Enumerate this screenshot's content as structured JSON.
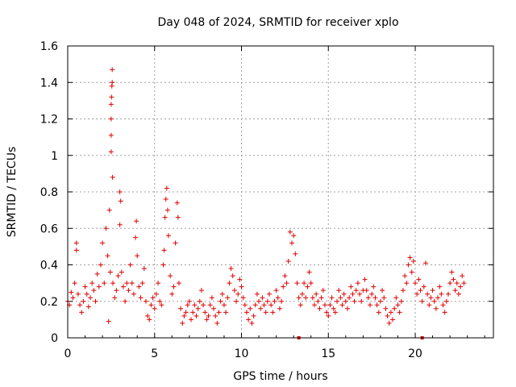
{
  "colors": {
    "series": "#e00000",
    "grid": "#a0a0a0",
    "axis": "#000000",
    "background": "#ffffff"
  },
  "chart_data": {
    "type": "scatter",
    "title": "Day 048 of 2024, SRMTID for receiver xplo",
    "xlabel": "GPS time / hours",
    "ylabel": "SRMTID / TECUs",
    "xlim": [
      0,
      24.5
    ],
    "ylim": [
      0,
      1.6
    ],
    "xticks": [
      0,
      5,
      10,
      15,
      20
    ],
    "xtick_labels": [
      "0",
      "5",
      "10",
      "15",
      "20"
    ],
    "yticks": [
      0,
      0.2,
      0.4,
      0.6,
      0.8,
      1.0,
      1.2,
      1.4,
      1.6
    ],
    "ytick_labels": [
      "0",
      "0.2",
      "0.4",
      "0.6",
      "0.8",
      "1",
      "1.2",
      "1.4",
      "1.6"
    ],
    "grid": true,
    "marker": "plus",
    "series": [
      {
        "name": "SRMTID",
        "points": [
          [
            0.0,
            0.2
          ],
          [
            0.1,
            0.18
          ],
          [
            0.2,
            0.25
          ],
          [
            0.3,
            0.22
          ],
          [
            0.4,
            0.3
          ],
          [
            0.5,
            0.52
          ],
          [
            0.5,
            0.48
          ],
          [
            0.6,
            0.24
          ],
          [
            0.7,
            0.18
          ],
          [
            0.8,
            0.14
          ],
          [
            0.9,
            0.2
          ],
          [
            1.0,
            0.28
          ],
          [
            1.1,
            0.24
          ],
          [
            1.2,
            0.17
          ],
          [
            1.3,
            0.22
          ],
          [
            1.4,
            0.3
          ],
          [
            1.5,
            0.26
          ],
          [
            1.6,
            0.2
          ],
          [
            1.7,
            0.35
          ],
          [
            1.8,
            0.28
          ],
          [
            1.9,
            0.4
          ],
          [
            2.0,
            0.52
          ],
          [
            2.1,
            0.3
          ],
          [
            2.2,
            0.6
          ],
          [
            2.3,
            0.45
          ],
          [
            2.35,
            0.09
          ],
          [
            2.4,
            0.7
          ],
          [
            2.45,
            0.36
          ],
          [
            2.5,
            1.02
          ],
          [
            2.5,
            1.11
          ],
          [
            2.5,
            1.2
          ],
          [
            2.5,
            1.28
          ],
          [
            2.52,
            1.32
          ],
          [
            2.54,
            1.38
          ],
          [
            2.56,
            1.4
          ],
          [
            2.56,
            1.47
          ],
          [
            2.58,
            0.88
          ],
          [
            2.6,
            0.3
          ],
          [
            2.7,
            0.22
          ],
          [
            2.8,
            0.26
          ],
          [
            2.9,
            0.34
          ],
          [
            3.0,
            0.62
          ],
          [
            3.0,
            0.8
          ],
          [
            3.05,
            0.75
          ],
          [
            3.1,
            0.36
          ],
          [
            3.2,
            0.28
          ],
          [
            3.3,
            0.2
          ],
          [
            3.4,
            0.3
          ],
          [
            3.5,
            0.26
          ],
          [
            3.6,
            0.4
          ],
          [
            3.7,
            0.3
          ],
          [
            3.8,
            0.24
          ],
          [
            3.9,
            0.55
          ],
          [
            3.95,
            0.64
          ],
          [
            4.0,
            0.45
          ],
          [
            4.1,
            0.28
          ],
          [
            4.2,
            0.22
          ],
          [
            4.3,
            0.3
          ],
          [
            4.4,
            0.38
          ],
          [
            4.5,
            0.2
          ],
          [
            4.6,
            0.12
          ],
          [
            4.7,
            0.1
          ],
          [
            4.8,
            0.18
          ],
          [
            4.9,
            0.22
          ],
          [
            5.0,
            0.16
          ],
          [
            5.1,
            0.24
          ],
          [
            5.2,
            0.3
          ],
          [
            5.3,
            0.2
          ],
          [
            5.4,
            0.18
          ],
          [
            5.5,
            0.4
          ],
          [
            5.55,
            0.48
          ],
          [
            5.6,
            0.66
          ],
          [
            5.65,
            0.76
          ],
          [
            5.7,
            0.82
          ],
          [
            5.75,
            0.7
          ],
          [
            5.8,
            0.56
          ],
          [
            5.9,
            0.34
          ],
          [
            6.0,
            0.24
          ],
          [
            6.1,
            0.28
          ],
          [
            6.2,
            0.52
          ],
          [
            6.3,
            0.74
          ],
          [
            6.35,
            0.66
          ],
          [
            6.4,
            0.3
          ],
          [
            6.5,
            0.16
          ],
          [
            6.6,
            0.08
          ],
          [
            6.7,
            0.12
          ],
          [
            6.8,
            0.14
          ],
          [
            6.9,
            0.18
          ],
          [
            7.0,
            0.2
          ],
          [
            7.1,
            0.1
          ],
          [
            7.2,
            0.14
          ],
          [
            7.3,
            0.18
          ],
          [
            7.4,
            0.12
          ],
          [
            7.5,
            0.16
          ],
          [
            7.6,
            0.2
          ],
          [
            7.7,
            0.26
          ],
          [
            7.8,
            0.18
          ],
          [
            7.9,
            0.14
          ],
          [
            8.0,
            0.1
          ],
          [
            8.1,
            0.12
          ],
          [
            8.2,
            0.18
          ],
          [
            8.3,
            0.22
          ],
          [
            8.4,
            0.16
          ],
          [
            8.5,
            0.12
          ],
          [
            8.6,
            0.08
          ],
          [
            8.7,
            0.14
          ],
          [
            8.8,
            0.2
          ],
          [
            8.9,
            0.24
          ],
          [
            9.0,
            0.18
          ],
          [
            9.1,
            0.14
          ],
          [
            9.2,
            0.22
          ],
          [
            9.3,
            0.3
          ],
          [
            9.4,
            0.38
          ],
          [
            9.5,
            0.34
          ],
          [
            9.6,
            0.26
          ],
          [
            9.7,
            0.2
          ],
          [
            9.8,
            0.24
          ],
          [
            9.9,
            0.32
          ],
          [
            10.0,
            0.28
          ],
          [
            10.1,
            0.22
          ],
          [
            10.2,
            0.18
          ],
          [
            10.3,
            0.14
          ],
          [
            10.4,
            0.1
          ],
          [
            10.5,
            0.16
          ],
          [
            10.6,
            0.08
          ],
          [
            10.7,
            0.12
          ],
          [
            10.8,
            0.18
          ],
          [
            10.9,
            0.24
          ],
          [
            11.0,
            0.2
          ],
          [
            11.1,
            0.16
          ],
          [
            11.2,
            0.22
          ],
          [
            11.3,
            0.18
          ],
          [
            11.4,
            0.14
          ],
          [
            11.5,
            0.2
          ],
          [
            11.6,
            0.24
          ],
          [
            11.7,
            0.18
          ],
          [
            11.8,
            0.14
          ],
          [
            11.9,
            0.2
          ],
          [
            12.0,
            0.26
          ],
          [
            12.1,
            0.22
          ],
          [
            12.2,
            0.16
          ],
          [
            12.3,
            0.2
          ],
          [
            12.4,
            0.28
          ],
          [
            12.5,
            0.34
          ],
          [
            12.6,
            0.3
          ],
          [
            12.7,
            0.42
          ],
          [
            12.8,
            0.58
          ],
          [
            12.9,
            0.52
          ],
          [
            13.0,
            0.56
          ],
          [
            13.1,
            0.46
          ],
          [
            13.2,
            0.3
          ],
          [
            13.3,
            0.22
          ],
          [
            13.4,
            0.18
          ],
          [
            13.5,
            0.24
          ],
          [
            13.6,
            0.3
          ],
          [
            13.7,
            0.22
          ],
          [
            13.8,
            0.28
          ],
          [
            13.9,
            0.36
          ],
          [
            14.0,
            0.3
          ],
          [
            14.1,
            0.22
          ],
          [
            14.2,
            0.18
          ],
          [
            14.3,
            0.24
          ],
          [
            14.4,
            0.2
          ],
          [
            14.5,
            0.16
          ],
          [
            14.6,
            0.22
          ],
          [
            14.7,
            0.26
          ],
          [
            14.8,
            0.18
          ],
          [
            14.9,
            0.14
          ],
          [
            15.0,
            0.12
          ],
          [
            15.1,
            0.18
          ],
          [
            15.2,
            0.22
          ],
          [
            15.3,
            0.16
          ],
          [
            15.4,
            0.14
          ],
          [
            15.5,
            0.2
          ],
          [
            15.6,
            0.26
          ],
          [
            15.7,
            0.22
          ],
          [
            15.8,
            0.18
          ],
          [
            15.9,
            0.24
          ],
          [
            16.0,
            0.2
          ],
          [
            16.1,
            0.16
          ],
          [
            16.2,
            0.22
          ],
          [
            16.3,
            0.28
          ],
          [
            16.4,
            0.24
          ],
          [
            16.5,
            0.2
          ],
          [
            16.6,
            0.26
          ],
          [
            16.7,
            0.3
          ],
          [
            16.8,
            0.24
          ],
          [
            16.9,
            0.2
          ],
          [
            17.0,
            0.26
          ],
          [
            17.1,
            0.32
          ],
          [
            17.2,
            0.26
          ],
          [
            17.3,
            0.22
          ],
          [
            17.4,
            0.18
          ],
          [
            17.5,
            0.24
          ],
          [
            17.6,
            0.28
          ],
          [
            17.7,
            0.22
          ],
          [
            17.8,
            0.18
          ],
          [
            17.9,
            0.14
          ],
          [
            18.0,
            0.2
          ],
          [
            18.1,
            0.26
          ],
          [
            18.2,
            0.22
          ],
          [
            18.3,
            0.16
          ],
          [
            18.4,
            0.12
          ],
          [
            18.5,
            0.08
          ],
          [
            18.6,
            0.14
          ],
          [
            18.7,
            0.1
          ],
          [
            18.8,
            0.16
          ],
          [
            18.9,
            0.22
          ],
          [
            19.0,
            0.18
          ],
          [
            19.1,
            0.14
          ],
          [
            19.2,
            0.2
          ],
          [
            19.3,
            0.26
          ],
          [
            19.4,
            0.34
          ],
          [
            19.5,
            0.3
          ],
          [
            19.6,
            0.4
          ],
          [
            19.7,
            0.44
          ],
          [
            19.8,
            0.36
          ],
          [
            19.9,
            0.42
          ],
          [
            20.0,
            0.3
          ],
          [
            20.1,
            0.24
          ],
          [
            20.2,
            0.32
          ],
          [
            20.3,
            0.26
          ],
          [
            20.4,
            0.2
          ],
          [
            20.5,
            0.28
          ],
          [
            20.6,
            0.41
          ],
          [
            20.7,
            0.24
          ],
          [
            20.8,
            0.18
          ],
          [
            20.9,
            0.22
          ],
          [
            21.0,
            0.26
          ],
          [
            21.1,
            0.2
          ],
          [
            21.2,
            0.16
          ],
          [
            21.3,
            0.22
          ],
          [
            21.4,
            0.28
          ],
          [
            21.5,
            0.24
          ],
          [
            21.6,
            0.18
          ],
          [
            21.7,
            0.14
          ],
          [
            21.8,
            0.2
          ],
          [
            21.9,
            0.24
          ],
          [
            22.0,
            0.3
          ],
          [
            22.1,
            0.36
          ],
          [
            22.2,
            0.32
          ],
          [
            22.3,
            0.26
          ],
          [
            22.4,
            0.3
          ],
          [
            22.5,
            0.24
          ],
          [
            22.6,
            0.28
          ],
          [
            22.7,
            0.34
          ],
          [
            22.8,
            0.3
          ]
        ]
      }
    ],
    "zero_markers": [
      13.3,
      20.4
    ]
  }
}
